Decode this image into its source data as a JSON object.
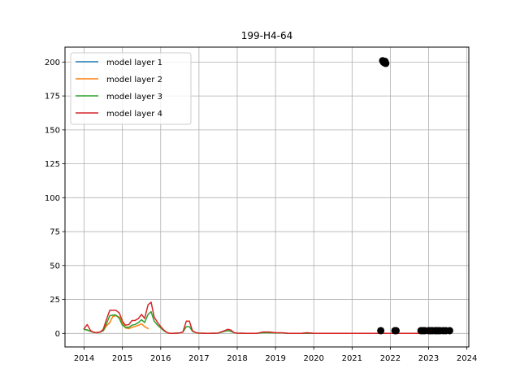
{
  "chart_data": {
    "type": "line",
    "title": "199-H4-64",
    "xlabel": "",
    "ylabel": "",
    "xlim": [
      2013.5,
      2024.05
    ],
    "ylim": [
      -10,
      211
    ],
    "x_ticks": [
      2014,
      2015,
      2016,
      2017,
      2018,
      2019,
      2020,
      2021,
      2022,
      2023,
      2024
    ],
    "y_ticks": [
      0,
      25,
      50,
      75,
      100,
      125,
      150,
      175,
      200
    ],
    "grid": true,
    "legend_position": "upper-left",
    "series": [
      {
        "name": "model layer 1",
        "color": "#1f77b4",
        "x": [
          2014.0,
          2014.08,
          2014.17,
          2014.25,
          2014.33,
          2014.42,
          2014.5,
          2014.58,
          2014.67
        ],
        "y": [
          3.0,
          2.5,
          1.5,
          0.8,
          0.5,
          1.0,
          2.0,
          5.5,
          8.0
        ]
      },
      {
        "name": "model layer 2",
        "color": "#ff7f0e",
        "x": [
          2014.0,
          2014.08,
          2014.17,
          2014.25,
          2014.33,
          2014.42,
          2014.5,
          2014.58,
          2014.67,
          2014.75,
          2014.83,
          2014.92,
          2015.0,
          2015.08,
          2015.17,
          2015.25,
          2015.33,
          2015.42,
          2015.5,
          2015.58,
          2015.67
        ],
        "y": [
          3.0,
          2.5,
          1.5,
          0.8,
          0.5,
          1.0,
          2.0,
          5.5,
          8.0,
          12.5,
          13.0,
          12.0,
          8.0,
          4.0,
          3.5,
          4.5,
          5.0,
          6.0,
          7.0,
          5.0,
          3.5
        ]
      },
      {
        "name": "model layer 3",
        "color": "#2ca02c",
        "x": [
          2014.0,
          2014.08,
          2014.17,
          2014.25,
          2014.33,
          2014.42,
          2014.5,
          2014.58,
          2014.67,
          2014.75,
          2014.83,
          2014.92,
          2015.0,
          2015.08,
          2015.17,
          2015.25,
          2015.33,
          2015.42,
          2015.5,
          2015.58,
          2015.67,
          2015.75,
          2015.83,
          2015.92,
          2016.0,
          2016.08,
          2016.17,
          2016.25,
          2016.33,
          2016.42,
          2016.5,
          2016.58,
          2016.67,
          2016.75,
          2016.83,
          2016.92,
          2017.0,
          2017.25,
          2017.5,
          2017.67,
          2017.75,
          2017.83,
          2017.92,
          2018.0,
          2018.25,
          2018.5,
          2018.67,
          2018.83,
          2019.0,
          2019.17,
          2019.33,
          2019.5,
          2019.67,
          2019.83,
          2020.0,
          2020.5,
          2021.0,
          2021.5,
          2022.0,
          2022.5,
          2023.0
        ],
        "y": [
          3.0,
          2.5,
          1.5,
          0.8,
          0.5,
          1.0,
          2.0,
          7.0,
          13.0,
          13.5,
          13.5,
          11.0,
          6.0,
          4.5,
          4.5,
          6.0,
          6.5,
          8.0,
          10.0,
          8.0,
          14.0,
          16.0,
          9.0,
          6.0,
          4.0,
          2.0,
          0.5,
          0.0,
          0.0,
          0.2,
          0.3,
          1.0,
          5.0,
          5.0,
          1.5,
          0.5,
          0.2,
          0.0,
          0.2,
          1.5,
          2.0,
          1.5,
          0.5,
          0.2,
          0.0,
          0.0,
          0.5,
          0.5,
          0.3,
          0.3,
          0.0,
          0.0,
          0.0,
          0.0,
          0.0,
          0.0,
          0.0,
          0.0,
          0.0,
          0.0,
          0.0
        ]
      },
      {
        "name": "model layer 4",
        "color": "#d62728",
        "x": [
          2014.0,
          2014.08,
          2014.17,
          2014.25,
          2014.33,
          2014.42,
          2014.5,
          2014.58,
          2014.67,
          2014.75,
          2014.83,
          2014.92,
          2015.0,
          2015.08,
          2015.17,
          2015.25,
          2015.33,
          2015.42,
          2015.5,
          2015.58,
          2015.67,
          2015.75,
          2015.83,
          2015.92,
          2016.0,
          2016.08,
          2016.17,
          2016.25,
          2016.33,
          2016.42,
          2016.5,
          2016.58,
          2016.67,
          2016.75,
          2016.83,
          2016.92,
          2017.0,
          2017.25,
          2017.5,
          2017.67,
          2017.75,
          2017.83,
          2017.92,
          2018.0,
          2018.25,
          2018.5,
          2018.67,
          2018.83,
          2019.0,
          2019.17,
          2019.33,
          2019.5,
          2019.67,
          2019.83,
          2020.0,
          2020.5,
          2021.0,
          2021.5,
          2022.0,
          2022.5,
          2023.0
        ],
        "y": [
          3.5,
          6.5,
          2.0,
          0.8,
          0.5,
          1.0,
          3.0,
          10.0,
          17.0,
          17.0,
          17.0,
          15.0,
          9.0,
          6.0,
          6.5,
          9.5,
          9.5,
          11.0,
          14.0,
          11.0,
          21.0,
          23.0,
          12.0,
          8.0,
          5.0,
          2.5,
          0.5,
          0.0,
          0.0,
          0.2,
          0.3,
          1.0,
          9.0,
          9.0,
          2.0,
          0.5,
          0.2,
          0.0,
          0.2,
          2.0,
          3.0,
          2.5,
          0.5,
          0.2,
          0.0,
          0.0,
          1.0,
          1.0,
          0.5,
          0.5,
          0.0,
          0.0,
          0.0,
          0.5,
          0.0,
          0.0,
          0.0,
          0.0,
          0.0,
          0.0,
          0.0
        ]
      }
    ],
    "observations": {
      "color": "#000000",
      "x": [
        2021.75,
        2021.8,
        2021.82,
        2021.84,
        2021.86,
        2021.88,
        2022.12,
        2022.15,
        2022.8,
        2022.85,
        2022.9,
        2023.0,
        2023.05,
        2023.1,
        2023.17,
        2023.2,
        2023.25,
        2023.3,
        2023.38,
        2023.45,
        2023.55
      ],
      "y": [
        2.0,
        201.0,
        200.0,
        199.5,
        200.5,
        199.0,
        2.0,
        2.0,
        2.0,
        2.0,
        2.0,
        2.0,
        2.0,
        2.0,
        2.0,
        2.0,
        2.0,
        2.0,
        2.0,
        2.0,
        2.0
      ]
    }
  }
}
